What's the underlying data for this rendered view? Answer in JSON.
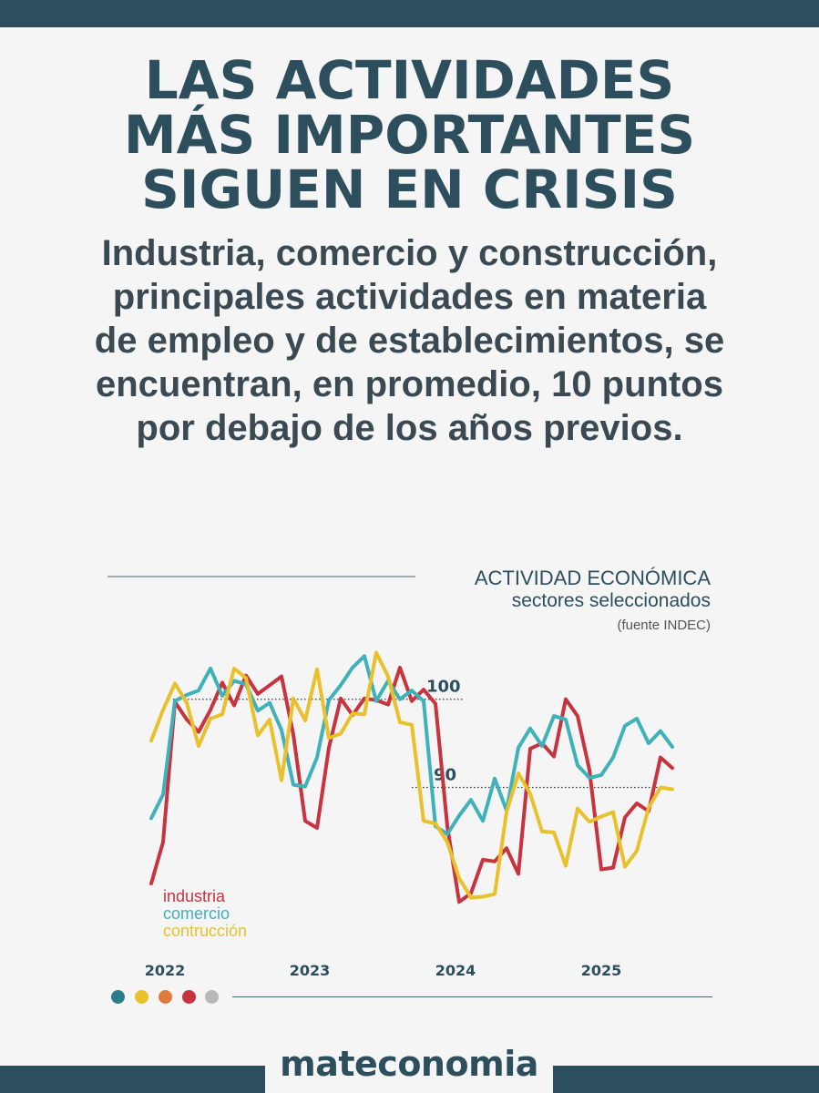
{
  "headline": {
    "line1": "LAS ACTIVIDADES",
    "line2": "MÁS IMPORTANTES",
    "line3": "SIGUEN EN CRISIS"
  },
  "subtitle": "Industria, comercio y construcción, principales actividades en materia de empleo y de establecimientos, se encuentran, en promedio, 10 puntos por debajo de los años previos.",
  "brand": "mateconomia",
  "colors": {
    "dark": "#2d4f5d",
    "industria": "#c7333f",
    "comercio": "#3fb1b9",
    "construccion": "#e8c12d",
    "orange": "#e07b3c",
    "gray": "#b3b3b3"
  },
  "legend_dots": [
    "#2a7e8c",
    "#e8c12d",
    "#e07b3c",
    "#c7333f",
    "#b8b8b8"
  ],
  "chart_data": {
    "type": "line",
    "title": "ACTIVIDAD ECONÓMICA",
    "subtitle": "sectores seleccionados",
    "source": "(fuente INDEC)",
    "x_tick_labels": [
      "2022",
      "2023",
      "2024",
      "2025"
    ],
    "reference_lines": [
      {
        "value": 100,
        "label": "100"
      },
      {
        "value": 90,
        "label": "90"
      }
    ],
    "ylim": [
      76,
      107
    ],
    "n_periods": 45,
    "series": [
      {
        "name": "industria",
        "color": "#c7333f",
        "values": [
          79.1,
          83.8,
          99.7,
          97.7,
          96.3,
          98.8,
          101.9,
          99.3,
          102.7,
          100.6,
          101.6,
          102.6,
          96.0,
          86.2,
          85.4,
          94.5,
          100.1,
          98.2,
          100.1,
          99.9,
          99.4,
          103.6,
          99.8,
          101.1,
          99.5,
          85.6,
          77.0,
          78.0,
          81.8,
          81.6,
          83.1,
          80.2,
          94.4,
          95.0,
          93.5,
          100.0,
          98.1,
          92.0,
          80.7,
          80.9,
          86.6,
          88.2,
          87.3,
          93.4,
          92.2
        ]
      },
      {
        "name": "comercio",
        "color": "#3fb1b9",
        "values": [
          86.5,
          89.2,
          99.8,
          100.5,
          101.0,
          103.5,
          100.4,
          102.1,
          101.7,
          98.7,
          99.6,
          96.5,
          90.3,
          90.1,
          93.4,
          99.9,
          101.6,
          103.6,
          104.9,
          99.8,
          102.1,
          100.0,
          101.0,
          99.8,
          85.6,
          84.7,
          86.8,
          88.6,
          86.2,
          91.0,
          87.4,
          94.5,
          96.7,
          94.7,
          98.1,
          97.7,
          92.5,
          91.1,
          91.4,
          93.4,
          97.0,
          97.8,
          95.0,
          96.4,
          94.6
        ]
      },
      {
        "name": "contrucción",
        "color": "#e8c12d",
        "values": [
          95.3,
          98.8,
          101.8,
          99.6,
          94.7,
          97.8,
          98.3,
          103.5,
          102.4,
          95.9,
          97.7,
          90.8,
          100.1,
          97.6,
          103.4,
          95.6,
          96.1,
          98.4,
          98.3,
          105.3,
          102.6,
          97.4,
          97.1,
          86.2,
          85.9,
          83.8,
          79.7,
          77.5,
          77.6,
          77.9,
          87.2,
          91.6,
          89.3,
          85.0,
          84.9,
          81.1,
          87.6,
          86.1,
          86.7,
          87.2,
          81.0,
          82.8,
          87.7,
          90.0,
          89.8
        ]
      }
    ]
  }
}
